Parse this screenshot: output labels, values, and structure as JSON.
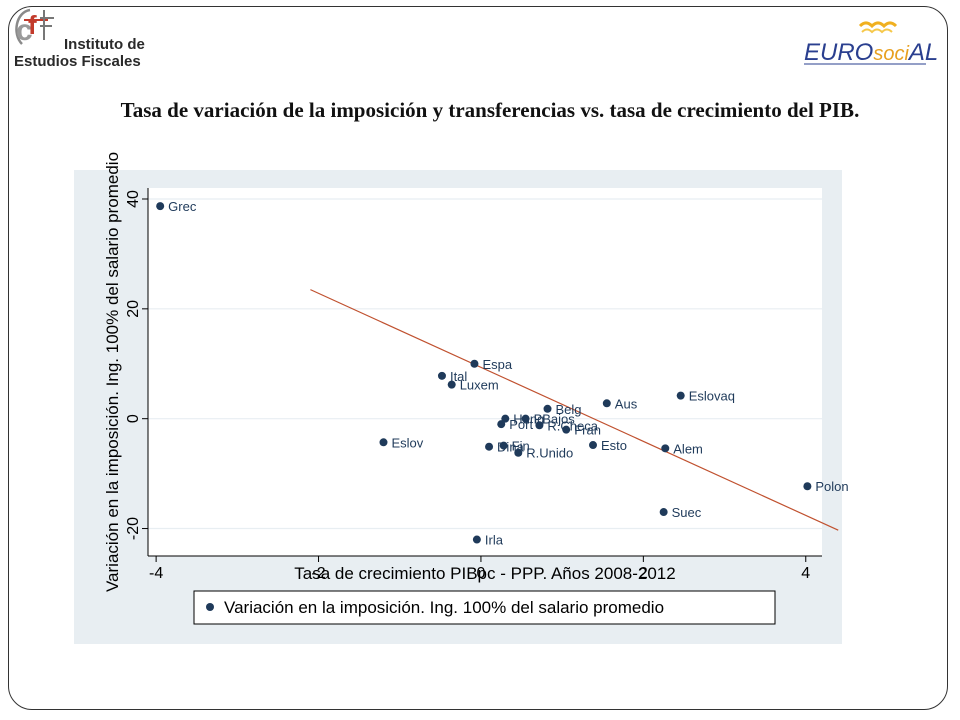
{
  "header": {
    "logo_left": {
      "name": "Instituto de Estudios Fiscales",
      "line1": "Instituto de",
      "line2": "Estudios Fiscales"
    },
    "logo_right": {
      "name": "EUROsociAL",
      "part1": "EURO",
      "part2": "soci",
      "part3": "AL"
    }
  },
  "title": "Tasa de variación de la imposición y transferencias vs. tasa de crecimiento del PIB.",
  "colors": {
    "panel": "#e8eef2",
    "plot": "#ffffff",
    "point": "#1f3a5a",
    "fit_line": "#c0512f"
  },
  "chart_data": {
    "type": "scatter",
    "xlabel": "Tasa de crecimiento PIBpc - PPP. Años 2008-2012",
    "ylabel": "Variación en la imposición. Ing. 100% del salario promedio",
    "xlim": [
      -4.1,
      4.2
    ],
    "ylim": [
      -25,
      42
    ],
    "xticks": [
      -4,
      -2,
      0,
      2,
      4
    ],
    "xtick_labels": [
      "-4",
      "-2",
      "0",
      "2",
      "4"
    ],
    "yticks": [
      -20,
      0,
      20,
      40
    ],
    "ytick_labels": [
      "-20",
      "0",
      "20",
      "40"
    ],
    "grid": true,
    "legend": {
      "position": "bottom",
      "entries": [
        "Variación en la imposición. Ing. 100% del salario promedio"
      ]
    },
    "series": [
      {
        "name": "Variación en la imposición. Ing. 100% del salario promedio",
        "points": [
          {
            "label": "Grec",
            "x": -3.95,
            "y": 38.7
          },
          {
            "label": "Espa",
            "x": -0.08,
            "y": 10.0
          },
          {
            "label": "Ital",
            "x": -0.48,
            "y": 7.8
          },
          {
            "label": "Luxem",
            "x": -0.36,
            "y": 6.2
          },
          {
            "label": "Eslovaq",
            "x": 2.46,
            "y": 4.2
          },
          {
            "label": "Aus",
            "x": 1.55,
            "y": 2.8
          },
          {
            "label": "Belg",
            "x": 0.82,
            "y": 1.8
          },
          {
            "label": "Hung",
            "x": 0.3,
            "y": 0.0
          },
          {
            "label": "PBajos",
            "x": 0.55,
            "y": 0.0
          },
          {
            "label": "Port",
            "x": 0.25,
            "y": -1.0
          },
          {
            "label": "R.Checa",
            "x": 0.72,
            "y": -1.2
          },
          {
            "label": "Fran",
            "x": 1.05,
            "y": -2.0
          },
          {
            "label": "Eslov",
            "x": -1.2,
            "y": -4.3
          },
          {
            "label": "Fin",
            "x": 0.28,
            "y": -4.9
          },
          {
            "label": "Dina",
            "x": 0.1,
            "y": -5.1
          },
          {
            "label": "Esto",
            "x": 1.38,
            "y": -4.8
          },
          {
            "label": "Alem",
            "x": 2.27,
            "y": -5.4
          },
          {
            "label": "R.Unido",
            "x": 0.46,
            "y": -6.2
          },
          {
            "label": "Polon",
            "x": 4.02,
            "y": -12.3
          },
          {
            "label": "Suec",
            "x": 2.25,
            "y": -17.0
          },
          {
            "label": "Irla",
            "x": -0.05,
            "y": -22.0
          }
        ]
      }
    ],
    "fit_line": {
      "x": [
        -2.1,
        4.4
      ],
      "y": [
        23.5,
        -20.3
      ]
    }
  }
}
